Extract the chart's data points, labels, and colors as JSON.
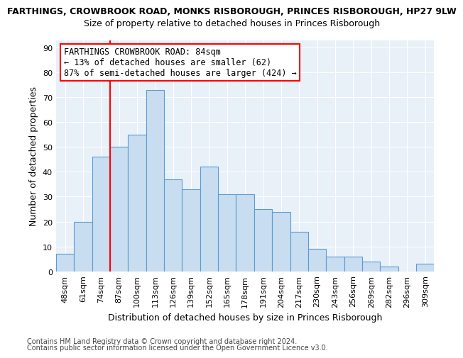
{
  "title_main": "FARTHINGS, CROWBROOK ROAD, MONKS RISBOROUGH, PRINCES RISBOROUGH, HP27 9LW",
  "title_sub": "Size of property relative to detached houses in Princes Risborough",
  "xlabel": "Distribution of detached houses by size in Princes Risborough",
  "ylabel": "Number of detached properties",
  "categories": [
    "48sqm",
    "61sqm",
    "74sqm",
    "87sqm",
    "100sqm",
    "113sqm",
    "126sqm",
    "139sqm",
    "152sqm",
    "165sqm",
    "178sqm",
    "191sqm",
    "204sqm",
    "217sqm",
    "230sqm",
    "243sqm",
    "256sqm",
    "269sqm",
    "282sqm",
    "296sqm",
    "309sqm"
  ],
  "values": [
    7,
    20,
    46,
    50,
    55,
    73,
    37,
    33,
    42,
    31,
    31,
    25,
    24,
    16,
    9,
    6,
    6,
    4,
    2,
    0,
    3
  ],
  "bar_color": "#c9ddf0",
  "bar_edge_color": "#5b9bd5",
  "bar_width": 1.0,
  "red_line_x": 3.0,
  "annotation_line1": "FARTHINGS CROWBROOK ROAD: 84sqm",
  "annotation_line2": "← 13% of detached houses are smaller (62)",
  "annotation_line3": "87% of semi-detached houses are larger (424) →",
  "annotation_box_color": "white",
  "annotation_box_edge_color": "red",
  "ylim": [
    0,
    93
  ],
  "yticks": [
    0,
    10,
    20,
    30,
    40,
    50,
    60,
    70,
    80,
    90
  ],
  "background_color": "#e8f0f8",
  "title_fontsize": 9,
  "subtitle_fontsize": 9,
  "ylabel_fontsize": 9,
  "xlabel_fontsize": 9,
  "tick_fontsize": 8,
  "footer1": "Contains HM Land Registry data © Crown copyright and database right 2024.",
  "footer2": "Contains public sector information licensed under the Open Government Licence v3.0.",
  "footer_fontsize": 7
}
